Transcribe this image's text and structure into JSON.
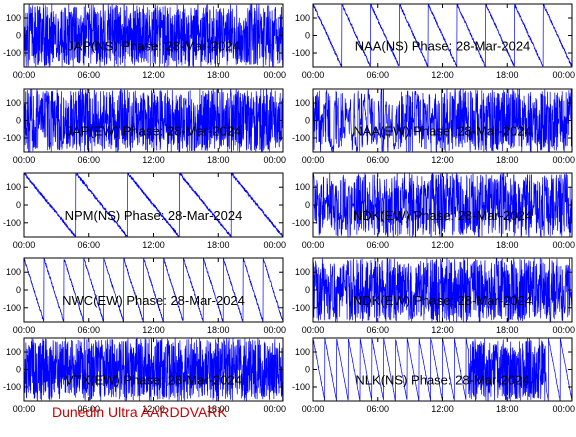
{
  "credit": "Dunedin Ultra AARDDVARK",
  "chart_data": [
    {
      "type": "line",
      "title": "JAP(NS) Phase: 28-Mar-2024",
      "ylim": [
        -180,
        180
      ],
      "yticks": [
        -100,
        0,
        100
      ],
      "xticks": [
        "00:00",
        "06:00",
        "12:00",
        "18:00",
        "00:00"
      ],
      "series_color": "#0000ff",
      "pattern": "dense",
      "density": 0.9
    },
    {
      "type": "line",
      "title": "NAA(NS) Phase: 28-Mar-2024",
      "ylim": [
        -180,
        180
      ],
      "yticks": [
        -100,
        0,
        100
      ],
      "xticks": [
        "00:00",
        "06:00",
        "12:00",
        "18:00",
        "00:00"
      ],
      "series_color": "#0000ff",
      "pattern": "sawtooth",
      "cycles": 9
    },
    {
      "type": "line",
      "title": "JAP(EW) Phase: 28-Mar-2024",
      "ylim": [
        -180,
        180
      ],
      "yticks": [
        -100,
        0,
        100
      ],
      "xticks": [
        "00:00",
        "06:00",
        "12:00",
        "18:00",
        "00:00"
      ],
      "series_color": "#0000ff",
      "pattern": "dense",
      "density": 0.8
    },
    {
      "type": "line",
      "title": "NAA(EW) Phase: 28-Mar-2024",
      "ylim": [
        -180,
        180
      ],
      "yticks": [
        -100,
        0,
        100
      ],
      "xticks": [
        "00:00",
        "06:00",
        "12:00",
        "18:00",
        "00:00"
      ],
      "series_color": "#0000ff",
      "pattern": "mixed",
      "density": 0.6
    },
    {
      "type": "line",
      "title": "NPM(NS) Phase: 28-Mar-2024",
      "ylim": [
        -180,
        180
      ],
      "yticks": [
        -100,
        0,
        100
      ],
      "xticks": [
        "00:00",
        "06:00",
        "12:00",
        "18:00",
        "00:00"
      ],
      "series_color": "#0000ff",
      "pattern": "sawtooth",
      "cycles": 5
    },
    {
      "type": "line",
      "title": "NDK(EW) Phase: 28-Mar-2024",
      "ylim": [
        -180,
        180
      ],
      "yticks": [
        -100,
        0,
        100
      ],
      "xticks": [
        "00:00",
        "06:00",
        "12:00",
        "18:00",
        "00:00"
      ],
      "series_color": "#0000ff",
      "pattern": "dense",
      "density": 0.7
    },
    {
      "type": "line",
      "title": "NWC(EW) Phase: 28-Mar-2024",
      "ylim": [
        -180,
        180
      ],
      "yticks": [
        -100,
        0,
        100
      ],
      "xticks": [
        "00:00",
        "06:00",
        "12:00",
        "18:00",
        "00:00"
      ],
      "series_color": "#0000ff",
      "pattern": "sawtooth",
      "cycles": 13
    },
    {
      "type": "line",
      "title": "NDK(EW) Phase: 28-Mar-2024",
      "ylim": [
        -180,
        180
      ],
      "yticks": [
        -100,
        0,
        100
      ],
      "xticks": [
        "00:00",
        "06:00",
        "12:00",
        "18:00",
        "00:00"
      ],
      "series_color": "#0000ff",
      "pattern": "dense",
      "density": 0.75
    },
    {
      "type": "line",
      "title": "VTX(EW) Phase: 28-Mar-2024",
      "ylim": [
        -180,
        180
      ],
      "yticks": [
        -100,
        0,
        100
      ],
      "xticks": [
        "00:00",
        "06:00",
        "12:00",
        "18:00",
        "00:00"
      ],
      "series_color": "#0000ff",
      "pattern": "dense",
      "density": 0.95
    },
    {
      "type": "line",
      "title": "NLK(NS) Phase: 28-Mar-2024",
      "ylim": [
        -180,
        180
      ],
      "yticks": [
        -100,
        0,
        100
      ],
      "xticks": [
        "00:00",
        "06:00",
        "12:00",
        "18:00",
        "00:00"
      ],
      "series_color": "#0000ff",
      "pattern": "sawblock",
      "cycles": 22
    }
  ]
}
